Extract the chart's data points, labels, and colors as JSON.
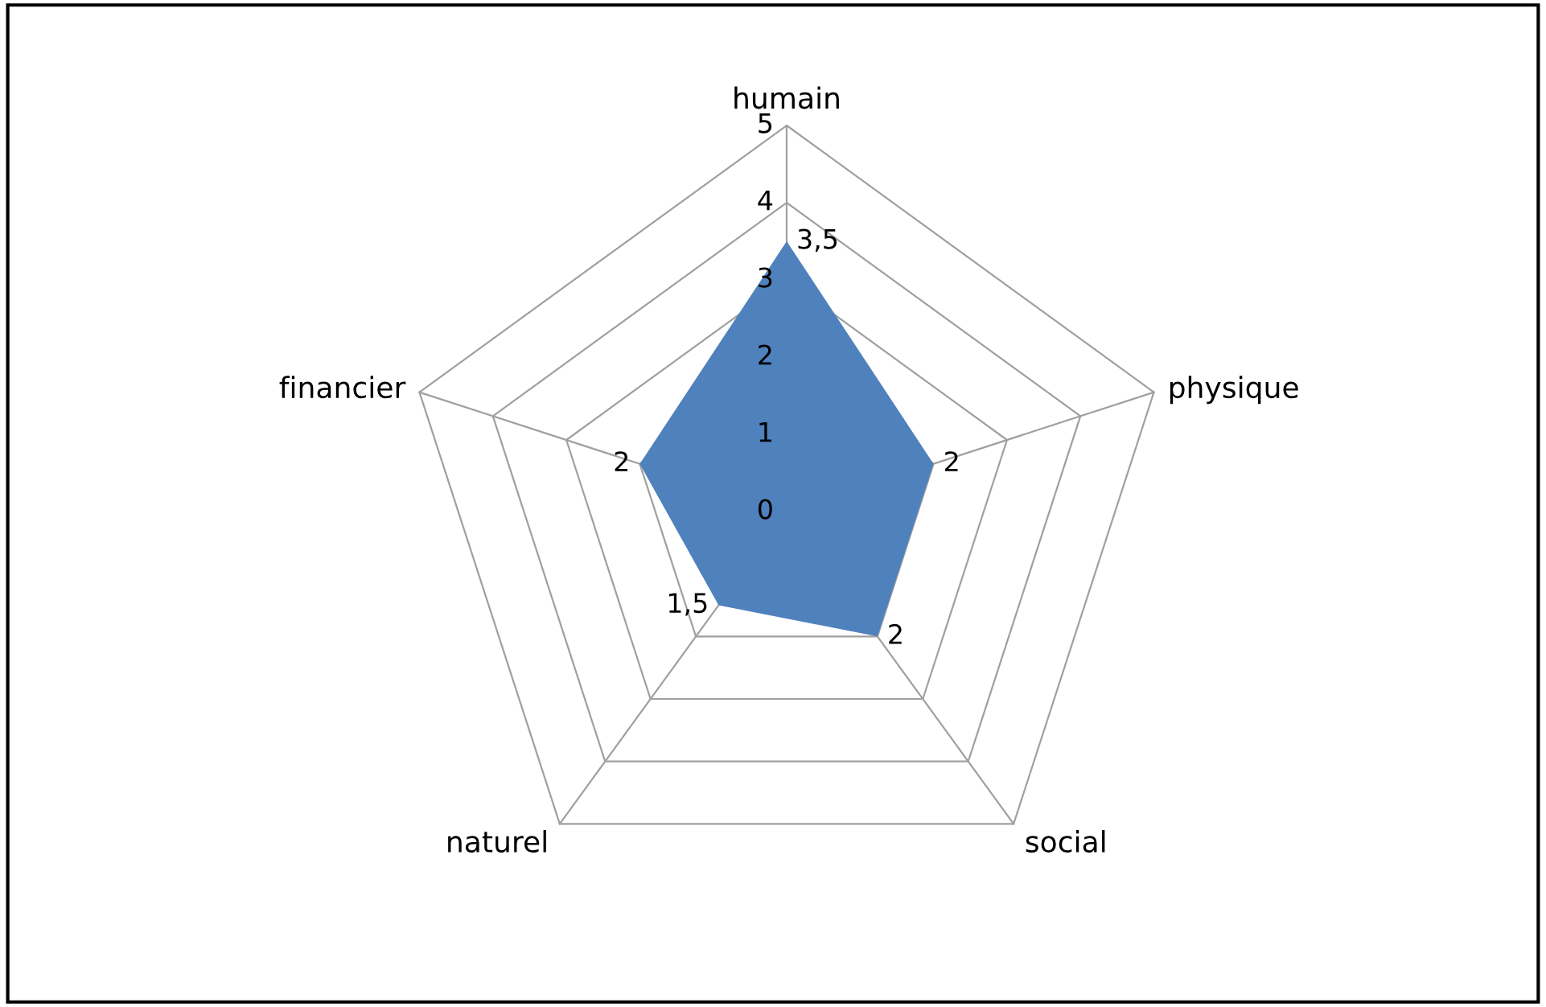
{
  "chart_data": {
    "type": "radar",
    "categories": [
      "humain",
      "physique",
      "social",
      "naturel",
      "financier"
    ],
    "series": [
      {
        "color": "#4f81bd",
        "values": [
          3.5,
          2,
          2,
          1.5,
          2
        ],
        "value_labels": [
          "3,5",
          "2",
          "2",
          "1,5",
          "2"
        ]
      }
    ],
    "ylim": [
      0,
      5
    ],
    "yticks": [
      0,
      1,
      2,
      3,
      4,
      5
    ],
    "grid": true
  }
}
